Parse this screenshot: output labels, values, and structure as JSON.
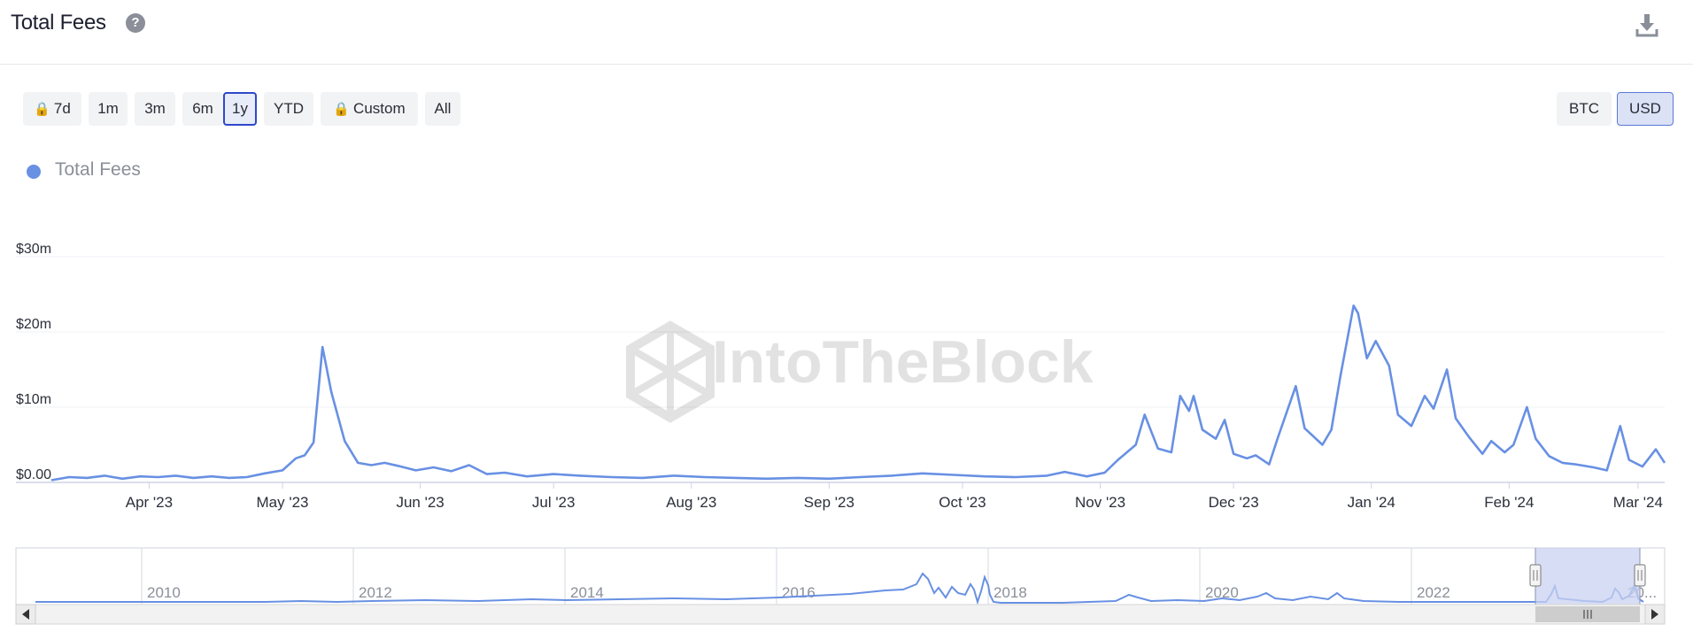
{
  "header": {
    "title": "Total Fees",
    "help_icon": "question-circle-icon",
    "download_icon": "download-icon"
  },
  "range_buttons": [
    {
      "label": "7d",
      "locked": true
    },
    {
      "label": "1m",
      "locked": false
    },
    {
      "label": "3m",
      "locked": false
    },
    {
      "label": "6m",
      "locked": false
    },
    {
      "label": "1y",
      "locked": false,
      "active": true
    },
    {
      "label": "YTD",
      "locked": false
    },
    {
      "label": "Custom",
      "locked": true
    },
    {
      "label": "All",
      "locked": false
    }
  ],
  "currency_buttons": [
    {
      "label": "BTC"
    },
    {
      "label": "USD",
      "active": true
    }
  ],
  "watermark": "IntoTheBlock",
  "colors": {
    "series": "#6890e3",
    "active_border": "#2f48c9",
    "navigator_mask": "#c9d2f0"
  },
  "chart_data": {
    "type": "line",
    "legend": [
      "Total Fees"
    ],
    "series": [
      {
        "name": "Total Fees"
      }
    ],
    "y_ticks": [
      "$0.00",
      "$10m",
      "$20m",
      "$30m"
    ],
    "y_tick_values": [
      0,
      10,
      20,
      30
    ],
    "ylim": [
      0,
      30
    ],
    "x_ticks": [
      "Apr '23",
      "May '23",
      "Jun '23",
      "Jul '23",
      "Aug '23",
      "Sep '23",
      "Oct '23",
      "Nov '23",
      "Dec '23",
      "Jan '24",
      "Feb '24",
      "Mar '24"
    ],
    "x_range": [
      "2023-03-10",
      "2024-03-07"
    ],
    "units": "USD millions",
    "points": [
      [
        "2023-03-10",
        0.3
      ],
      [
        "2023-03-14",
        0.7
      ],
      [
        "2023-03-18",
        0.6
      ],
      [
        "2023-03-22",
        0.9
      ],
      [
        "2023-03-26",
        0.5
      ],
      [
        "2023-03-30",
        0.8
      ],
      [
        "2023-04-03",
        0.7
      ],
      [
        "2023-04-07",
        0.9
      ],
      [
        "2023-04-11",
        0.6
      ],
      [
        "2023-04-15",
        0.8
      ],
      [
        "2023-04-19",
        0.6
      ],
      [
        "2023-04-23",
        0.7
      ],
      [
        "2023-04-27",
        1.2
      ],
      [
        "2023-05-01",
        1.6
      ],
      [
        "2023-05-04",
        3.2
      ],
      [
        "2023-05-06",
        3.6
      ],
      [
        "2023-05-08",
        5.3
      ],
      [
        "2023-05-10",
        18.0
      ],
      [
        "2023-05-12",
        12.0
      ],
      [
        "2023-05-15",
        5.5
      ],
      [
        "2023-05-18",
        2.6
      ],
      [
        "2023-05-21",
        2.3
      ],
      [
        "2023-05-24",
        2.6
      ],
      [
        "2023-05-27",
        2.2
      ],
      [
        "2023-05-31",
        1.6
      ],
      [
        "2023-06-04",
        2.0
      ],
      [
        "2023-06-08",
        1.5
      ],
      [
        "2023-06-12",
        2.3
      ],
      [
        "2023-06-16",
        1.1
      ],
      [
        "2023-06-20",
        1.3
      ],
      [
        "2023-06-25",
        0.8
      ],
      [
        "2023-07-01",
        1.1
      ],
      [
        "2023-07-07",
        0.9
      ],
      [
        "2023-07-14",
        0.7
      ],
      [
        "2023-07-21",
        0.6
      ],
      [
        "2023-07-28",
        0.9
      ],
      [
        "2023-08-04",
        0.7
      ],
      [
        "2023-08-11",
        0.6
      ],
      [
        "2023-08-18",
        0.5
      ],
      [
        "2023-08-25",
        0.6
      ],
      [
        "2023-09-01",
        0.5
      ],
      [
        "2023-09-08",
        0.7
      ],
      [
        "2023-09-15",
        0.9
      ],
      [
        "2023-09-22",
        1.2
      ],
      [
        "2023-09-29",
        1.0
      ],
      [
        "2023-10-06",
        0.8
      ],
      [
        "2023-10-13",
        0.7
      ],
      [
        "2023-10-20",
        0.9
      ],
      [
        "2023-10-24",
        1.4
      ],
      [
        "2023-10-29",
        0.8
      ],
      [
        "2023-11-02",
        1.3
      ],
      [
        "2023-11-05",
        3.0
      ],
      [
        "2023-11-09",
        5.0
      ],
      [
        "2023-11-11",
        9.0
      ],
      [
        "2023-11-14",
        4.5
      ],
      [
        "2023-11-17",
        4.0
      ],
      [
        "2023-11-19",
        11.5
      ],
      [
        "2023-11-21",
        9.5
      ],
      [
        "2023-11-22",
        11.5
      ],
      [
        "2023-11-24",
        7.0
      ],
      [
        "2023-11-27",
        5.8
      ],
      [
        "2023-11-29",
        8.3
      ],
      [
        "2023-12-01",
        3.8
      ],
      [
        "2023-12-04",
        3.2
      ],
      [
        "2023-12-06",
        3.6
      ],
      [
        "2023-12-09",
        2.4
      ],
      [
        "2023-12-11",
        6.0
      ],
      [
        "2023-12-15",
        12.8
      ],
      [
        "2023-12-17",
        7.2
      ],
      [
        "2023-12-21",
        5.0
      ],
      [
        "2023-12-23",
        7.0
      ],
      [
        "2023-12-25",
        14.0
      ],
      [
        "2023-12-28",
        23.5
      ],
      [
        "2023-12-29",
        22.5
      ],
      [
        "2023-12-31",
        16.5
      ],
      [
        "2024-01-02",
        18.8
      ],
      [
        "2024-01-05",
        15.5
      ],
      [
        "2024-01-07",
        9.0
      ],
      [
        "2024-01-10",
        7.5
      ],
      [
        "2024-01-13",
        11.5
      ],
      [
        "2024-01-15",
        9.8
      ],
      [
        "2024-01-18",
        15.0
      ],
      [
        "2024-01-20",
        8.5
      ],
      [
        "2024-01-23",
        6.0
      ],
      [
        "2024-01-26",
        3.8
      ],
      [
        "2024-01-28",
        5.5
      ],
      [
        "2024-01-31",
        4.0
      ],
      [
        "2024-02-02",
        5.0
      ],
      [
        "2024-02-05",
        10.0
      ],
      [
        "2024-02-07",
        5.8
      ],
      [
        "2024-02-10",
        3.5
      ],
      [
        "2024-02-13",
        2.6
      ],
      [
        "2024-02-16",
        2.4
      ],
      [
        "2024-02-20",
        2.0
      ],
      [
        "2024-02-23",
        1.6
      ],
      [
        "2024-02-26",
        7.5
      ],
      [
        "2024-02-28",
        3.0
      ],
      [
        "2024-03-02",
        2.1
      ],
      [
        "2024-03-05",
        4.4
      ],
      [
        "2024-03-07",
        2.6
      ]
    ],
    "navigator": {
      "x_ticks": [
        "2010",
        "2012",
        "2014",
        "2016",
        "2018",
        "2020",
        "2022",
        "20..."
      ],
      "selected_range": [
        "2023-03-10",
        "2024-03-07"
      ]
    }
  }
}
